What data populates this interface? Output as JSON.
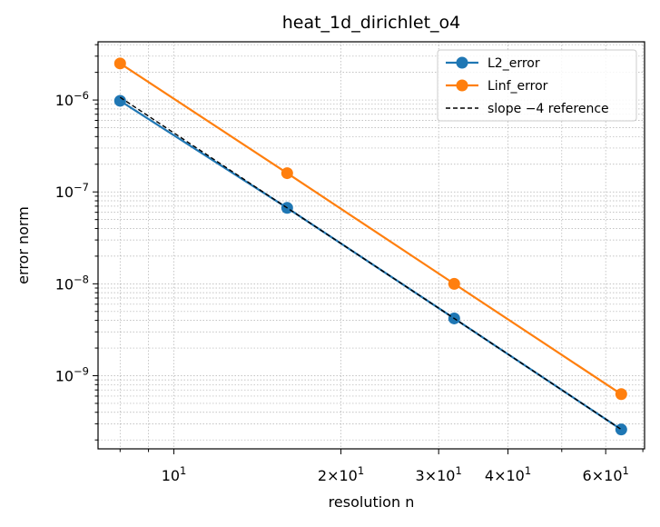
{
  "chart_data": {
    "type": "line",
    "title": "heat_1d_dirichlet_o4",
    "xlabel": "resolution n",
    "ylabel": "error norm",
    "xscale": "log",
    "yscale": "log",
    "xlim": [
      7.3,
      70.5
    ],
    "ylim": [
      1.6e-10,
      4.3e-06
    ],
    "grid": "on (major and minor, dotted)",
    "legend_position": "top-right",
    "x": [
      8,
      16,
      32,
      64
    ],
    "series": [
      {
        "name": "L2_error",
        "color": "#1f77b4",
        "marker": "circle",
        "values": [
          9.8e-07,
          6.7e-08,
          4.2e-09,
          2.6e-10
        ]
      },
      {
        "name": "Linf_error",
        "color": "#ff7f0e",
        "marker": "circle",
        "values": [
          2.5e-06,
          1.6e-07,
          1e-08,
          6.3e-10
        ]
      },
      {
        "name": "slope −4 reference",
        "color": "#000000",
        "style": "dashed",
        "values": [
          1.07e-06,
          6.7e-08,
          4.2e-09,
          2.6e-10
        ]
      }
    ],
    "x_ticks": [
      {
        "value": 10,
        "base": "10",
        "exp": "1"
      },
      {
        "value": 20,
        "base": "2×10",
        "exp": "1"
      },
      {
        "value": 30,
        "base": "3×10",
        "exp": "1"
      },
      {
        "value": 40,
        "base": "4×10",
        "exp": "1"
      },
      {
        "value": 60,
        "base": "6×10",
        "exp": "1"
      }
    ],
    "y_ticks": [
      {
        "value": 1e-09,
        "base": "10",
        "exp": "−9"
      },
      {
        "value": 1e-08,
        "base": "10",
        "exp": "−8"
      },
      {
        "value": 1e-07,
        "base": "10",
        "exp": "−7"
      },
      {
        "value": 1e-06,
        "base": "10",
        "exp": "−6"
      }
    ]
  }
}
